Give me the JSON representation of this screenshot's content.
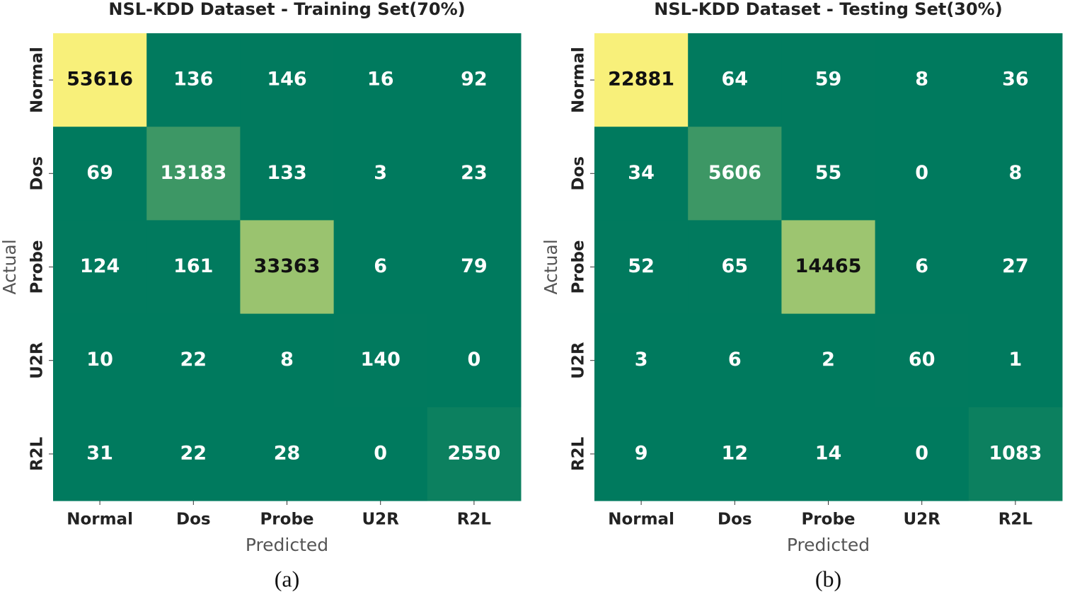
{
  "chart_data": [
    {
      "type": "heatmap",
      "title": "NSL-KDD Dataset - Training Set(70%)",
      "x_label": "Predicted",
      "y_label": "Actual",
      "caption": "(a)",
      "x_categories": [
        "Normal",
        "Dos",
        "Probe",
        "U2R",
        "R2L"
      ],
      "y_categories": [
        "Normal",
        "Dos",
        "Probe",
        "U2R",
        "R2L"
      ],
      "values": [
        [
          53616,
          136,
          146,
          16,
          92
        ],
        [
          69,
          13183,
          133,
          3,
          23
        ],
        [
          124,
          161,
          33363,
          6,
          79
        ],
        [
          10,
          22,
          8,
          140,
          0
        ],
        [
          31,
          22,
          28,
          0,
          2550
        ]
      ],
      "colors": [
        "#007a5e",
        "#f8f07a"
      ]
    },
    {
      "type": "heatmap",
      "title": "NSL-KDD Dataset - Testing Set(30%)",
      "x_label": "Predicted",
      "y_label": "Actual",
      "caption": "(b)",
      "x_categories": [
        "Normal",
        "Dos",
        "Probe",
        "U2R",
        "R2L"
      ],
      "y_categories": [
        "Normal",
        "Dos",
        "Probe",
        "U2R",
        "R2L"
      ],
      "values": [
        [
          22881,
          64,
          59,
          8,
          36
        ],
        [
          34,
          5606,
          55,
          0,
          8
        ],
        [
          52,
          65,
          14465,
          6,
          27
        ],
        [
          3,
          6,
          2,
          60,
          1
        ],
        [
          9,
          12,
          14,
          0,
          1083
        ]
      ],
      "colors": [
        "#007a5e",
        "#f8f07a"
      ]
    }
  ]
}
